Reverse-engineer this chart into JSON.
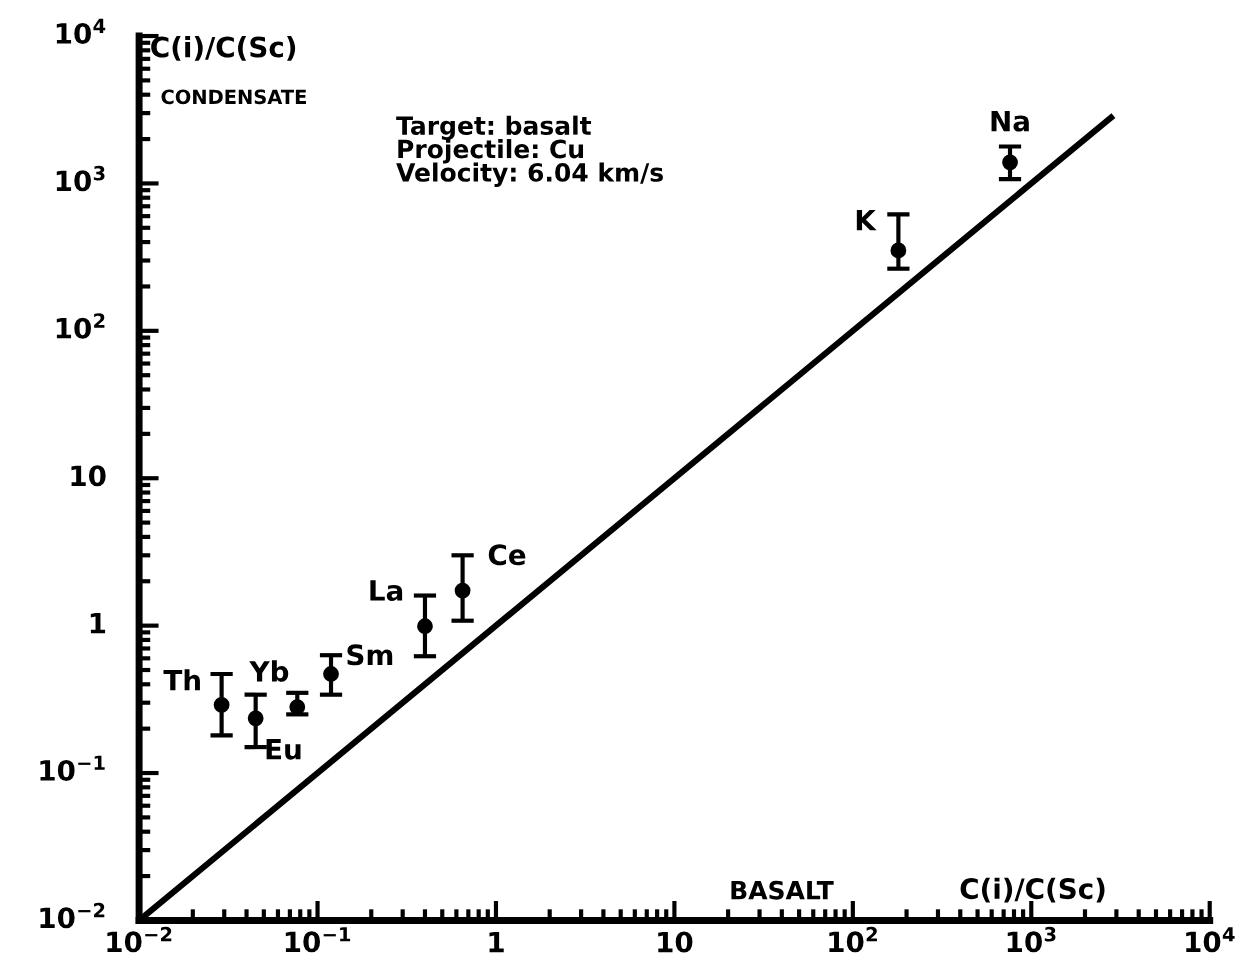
{
  "chart_data": {
    "type": "scatter",
    "xlabel": "C(i)/C(Sc)",
    "ylabel": "C(i)/C(Sc)",
    "log": "xy",
    "xlim": [
      0.01,
      10000
    ],
    "ylim": [
      0.01,
      10000
    ],
    "xticks": [
      {
        "value": 0.01,
        "label": "10$^{−2}$"
      },
      {
        "value": 0.1,
        "label": "10$^{−1}$"
      },
      1,
      10,
      {
        "value": 100,
        "label": "10$^{2}$"
      },
      {
        "value": 1000,
        "label": "10$^{3}$"
      },
      {
        "value": 10000,
        "label": "10$^{4}$"
      }
    ],
    "yticks": [
      {
        "value": 0.01,
        "label": "10$^{−2}$"
      },
      {
        "value": 0.1,
        "label": "10$^{−1}$"
      },
      1,
      10,
      {
        "value": 100,
        "label": "10$^{2}$"
      },
      {
        "value": 1000,
        "label": "10$^{3}$"
      },
      {
        "value": 10000,
        "label": "10$^{4}$"
      }
    ],
    "grid": false,
    "legend": false,
    "series": [
      {
        "marker": "circle",
        "color": "#000000",
        "x": [
          0.029,
          0.045,
          0.077,
          0.119,
          0.4,
          0.65,
          180,
          760
        ],
        "values": [
          0.29,
          0.235,
          0.28,
          0.47,
          0.99,
          1.73,
          351,
          1390
        ],
        "errors": [
          [
            0.18,
            0.47
          ],
          [
            0.15,
            0.34
          ],
          [
            0.25,
            0.35
          ],
          [
            0.34,
            0.63
          ],
          [
            0.62,
            1.6
          ],
          [
            1.08,
            3.0
          ],
          [
            264,
            617
          ],
          [
            1070,
            1780
          ]
        ]
      },
      {
        "type": "line",
        "color": "#000000",
        "line_style": "solid",
        "x": [
          0.01,
          2800
        ],
        "values": [
          0.01,
          2800
        ]
      }
    ],
    "annotations": [
      {
        "text": "Th",
        "x": 0.029,
        "y": 0.29
      },
      {
        "text": "Eu",
        "x": 0.045,
        "y": 0.235
      },
      {
        "text": "Yb",
        "x": 0.077,
        "y": 0.28
      },
      {
        "text": "Sm",
        "x": 0.119,
        "y": 0.47
      },
      {
        "text": "La",
        "x": 0.4,
        "y": 0.99
      },
      {
        "text": "Ce",
        "x": 0.65,
        "y": 1.73
      },
      {
        "text": "K",
        "x": 180,
        "y": 351
      },
      {
        "text": "Na",
        "x": 760,
        "y": 1390
      },
      "CONDENSATE",
      "BASALT",
      "Target: basalt\nProjectile: Cu\nVelocity: 6.04 km/s"
    ]
  }
}
